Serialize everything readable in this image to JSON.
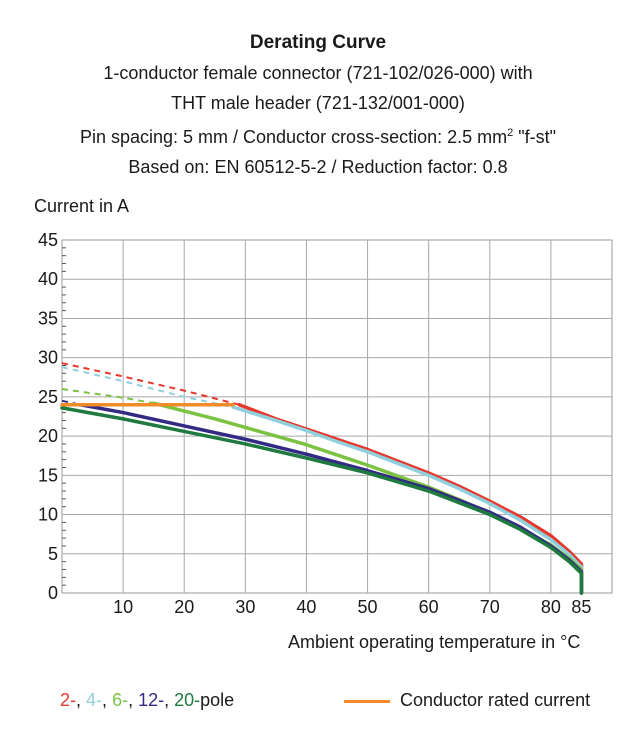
{
  "chart_data": {
    "type": "line",
    "title": "Derating Curve",
    "subtitle_lines": [
      "1-conductor female connector (721-102/026-000) with",
      "THT male header (721-132/001-000)",
      "Pin spacing: 5 mm / Conductor cross-section: 2.5 mm",
      "Based on: EN 60512-5-2 / Reduction factor: 0.8"
    ],
    "subtitle_sup": "2",
    "subtitle_tail": " \"f-st\"",
    "ylabel": "Current in A",
    "xlabel": "Ambient operating temperature in °C",
    "xlim": [
      0,
      85
    ],
    "ylim": [
      0,
      45
    ],
    "x_ticks": [
      "10",
      "20",
      "30",
      "40",
      "50",
      "60",
      "70",
      "80",
      "85"
    ],
    "x_tick_values": [
      10,
      20,
      30,
      40,
      50,
      60,
      70,
      80,
      85
    ],
    "y_ticks": [
      "0",
      "5",
      "10",
      "15",
      "20",
      "25",
      "30",
      "35",
      "40",
      "45"
    ],
    "y_tick_values": [
      0,
      5,
      10,
      15,
      20,
      25,
      30,
      35,
      40,
      45
    ],
    "grid": true,
    "series": [
      {
        "name": "2-pole",
        "color": "#e8372c",
        "dashed": [
          [
            0,
            29.3
          ],
          [
            10,
            27.6
          ],
          [
            20,
            25.8
          ],
          [
            29,
            24.0
          ]
        ],
        "x": [
          29,
          35,
          40,
          45,
          50,
          55,
          60,
          65,
          70,
          75,
          80,
          83,
          85,
          85
        ],
        "y": [
          24.0,
          22.2,
          20.9,
          19.6,
          18.3,
          16.8,
          15.3,
          13.6,
          11.7,
          9.7,
          7.3,
          5.3,
          3.7,
          0
        ]
      },
      {
        "name": "4-pole",
        "color": "#8fd0dc",
        "dashed": [
          [
            0,
            28.8
          ],
          [
            10,
            27.0
          ],
          [
            20,
            25.0
          ],
          [
            28,
            23.7
          ]
        ],
        "x": [
          28,
          35,
          40,
          45,
          50,
          55,
          60,
          65,
          70,
          75,
          80,
          83,
          85,
          85
        ],
        "y": [
          23.7,
          22.0,
          20.7,
          19.3,
          18.0,
          16.5,
          15.0,
          13.3,
          11.4,
          9.3,
          6.8,
          4.9,
          3.3,
          0
        ]
      },
      {
        "name": "6-pole",
        "color": "#7cc242",
        "dashed": [
          [
            0,
            26.0
          ],
          [
            10,
            24.9
          ],
          [
            15,
            24.2
          ]
        ],
        "x": [
          15,
          20,
          25,
          30,
          35,
          40,
          45,
          50,
          55,
          60,
          65,
          70,
          75,
          80,
          83,
          85,
          85
        ],
        "y": [
          24.2,
          23.2,
          22.2,
          21.1,
          20.0,
          18.9,
          17.6,
          16.3,
          14.9,
          13.5,
          11.9,
          10.2,
          8.3,
          6.1,
          4.4,
          3.0,
          0
        ]
      },
      {
        "name": "12-pole",
        "color": "#332a86",
        "dashed": [
          [
            0,
            24.5
          ],
          [
            3,
            24.0
          ]
        ],
        "x": [
          3,
          10,
          20,
          30,
          40,
          50,
          60,
          70,
          75,
          80,
          83,
          85,
          85
        ],
        "y": [
          24.0,
          23.0,
          21.3,
          19.6,
          17.7,
          15.6,
          13.3,
          10.3,
          8.4,
          6.0,
          4.2,
          2.7,
          0
        ]
      },
      {
        "name": "20-pole",
        "color": "#1e7a3e",
        "dashed": [],
        "x": [
          0,
          10,
          20,
          30,
          40,
          50,
          60,
          70,
          75,
          80,
          83,
          85,
          85
        ],
        "y": [
          23.6,
          22.2,
          20.6,
          19.0,
          17.2,
          15.3,
          13.0,
          10.0,
          8.1,
          5.8,
          4.0,
          2.5,
          0
        ]
      },
      {
        "name": "Conductor rated current",
        "color": "#f28c28",
        "dashed": [],
        "x": [
          0,
          28
        ],
        "y": [
          24.0,
          24.0
        ]
      }
    ],
    "legend": {
      "parts": [
        {
          "text": "2-",
          "color": "#e8372c"
        },
        {
          "text": ", ",
          "color": "#1a1a1a"
        },
        {
          "text": "4-",
          "color": "#8fd0dc"
        },
        {
          "text": ", ",
          "color": "#1a1a1a"
        },
        {
          "text": "6-",
          "color": "#7cc242"
        },
        {
          "text": ", ",
          "color": "#1a1a1a"
        },
        {
          "text": "12-",
          "color": "#332a86"
        },
        {
          "text": ", ",
          "color": "#1a1a1a"
        },
        {
          "text": "20-",
          "color": "#1e7a3e"
        },
        {
          "text": "pole",
          "color": "#1a1a1a"
        }
      ],
      "rated_label": "Conductor rated current",
      "rated_color": "#f28c28",
      "placement": "bottom"
    }
  }
}
